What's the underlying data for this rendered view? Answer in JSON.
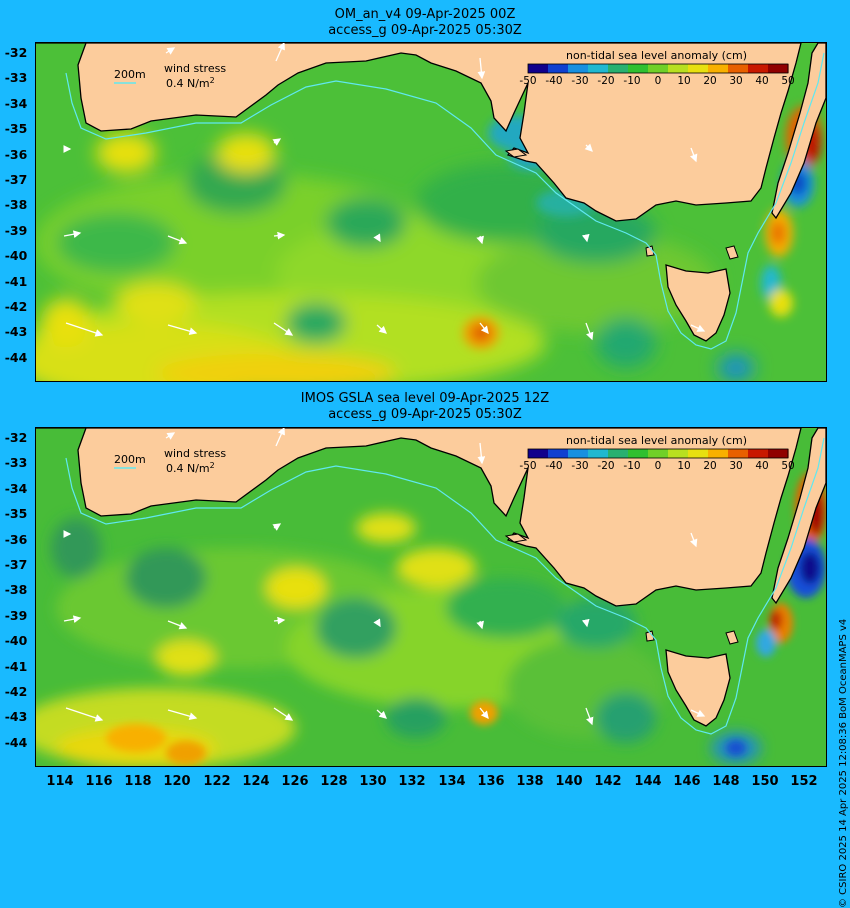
{
  "panels": [
    {
      "title_line1": "OM_an_v4  09-Apr-2025 00Z",
      "title_line2": "access_g 09-Apr-2025 05:30Z"
    },
    {
      "title_line1": "IMOS GSLA sea level  09-Apr-2025 12Z",
      "title_line2": "access_g 09-Apr-2025 05:30Z"
    }
  ],
  "legend": {
    "isobath_label": "200m",
    "wind_label": "wind stress",
    "wind_scale": "0.4 N/m",
    "wind_scale_sup": "2",
    "colorbar_title": "non-tidal sea level anomaly (cm)",
    "colorbar_ticks": [
      "-50",
      "-40",
      "-30",
      "-20",
      "-10",
      "0",
      "10",
      "20",
      "30",
      "40",
      "50"
    ],
    "colorbar_colors": [
      "#10008c",
      "#1040d0",
      "#1890e0",
      "#20b8d0",
      "#28b070",
      "#30c030",
      "#70d028",
      "#b8e020",
      "#e8e010",
      "#f8b000",
      "#e86000",
      "#c81800",
      "#900000"
    ]
  },
  "latitude_labels": [
    "-32",
    "-33",
    "-34",
    "-35",
    "-36",
    "-37",
    "-38",
    "-39",
    "-40",
    "-41",
    "-42",
    "-43",
    "-44"
  ],
  "longitude_labels": [
    "114",
    "116",
    "118",
    "120",
    "122",
    "124",
    "126",
    "128",
    "130",
    "132",
    "134",
    "136",
    "138",
    "140",
    "142",
    "144",
    "146",
    "148",
    "150",
    "152"
  ],
  "credit": "© CSIRO 2025  14 Apr 2025 12:08:36 BoM OceanMAPS v4",
  "colors": {
    "page_background": "#19baff",
    "land": "#fccc9c",
    "isobath": "#60e8f0",
    "wind_arrow": "#ffffff"
  }
}
